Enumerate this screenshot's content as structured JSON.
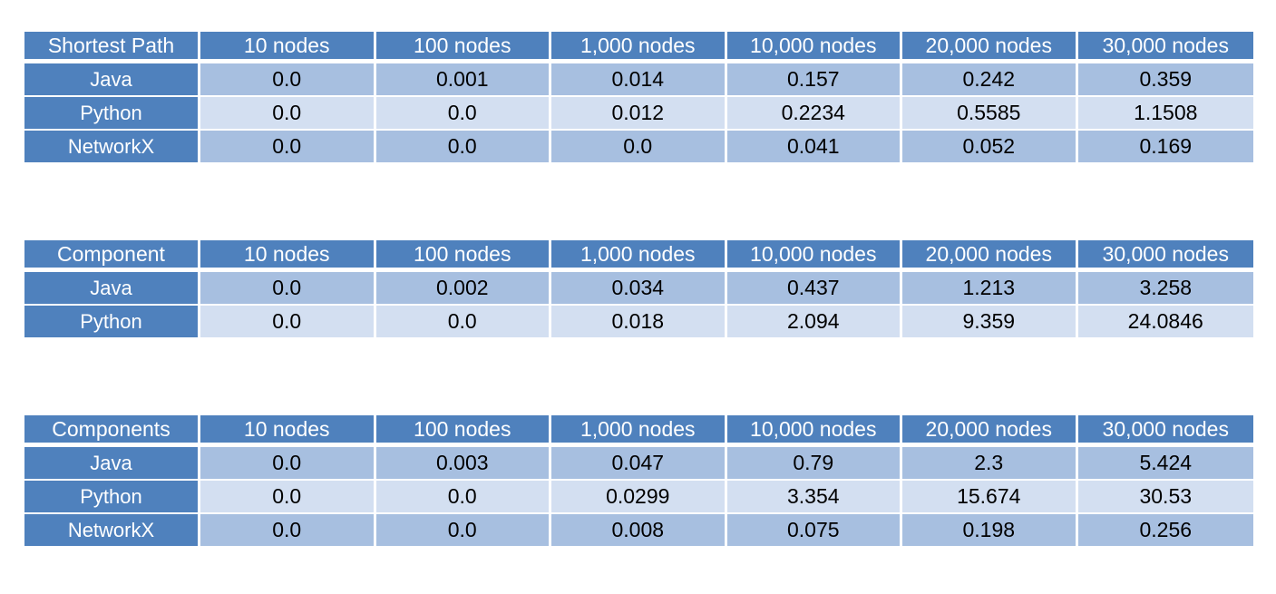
{
  "columns": [
    "10 nodes",
    "100 nodes",
    "1,000 nodes",
    "10,000 nodes",
    "20,000 nodes",
    "30,000 nodes"
  ],
  "tables": [
    {
      "title": "Shortest Path",
      "rows": [
        {
          "label": "Java",
          "values": [
            "0.0",
            "0.001",
            "0.014",
            "0.157",
            "0.242",
            "0.359"
          ]
        },
        {
          "label": "Python",
          "values": [
            "0.0",
            "0.0",
            "0.012",
            "0.2234",
            "0.5585",
            "1.1508"
          ]
        },
        {
          "label": "NetworkX",
          "values": [
            "0.0",
            "0.0",
            "0.0",
            "0.041",
            "0.052",
            "0.169"
          ]
        }
      ]
    },
    {
      "title": "Component",
      "rows": [
        {
          "label": "Java",
          "values": [
            "0.0",
            "0.002",
            "0.034",
            "0.437",
            "1.213",
            "3.258"
          ]
        },
        {
          "label": "Python",
          "values": [
            "0.0",
            "0.0",
            "0.018",
            "2.094",
            "9.359",
            "24.0846"
          ]
        }
      ]
    },
    {
      "title": "Components",
      "rows": [
        {
          "label": "Java",
          "values": [
            "0.0",
            "0.003",
            "0.047",
            "0.79",
            "2.3",
            "5.424"
          ]
        },
        {
          "label": "Python",
          "values": [
            "0.0",
            "0.0",
            "0.0299",
            "3.354",
            "15.674",
            "30.53"
          ]
        },
        {
          "label": "NetworkX",
          "values": [
            "0.0",
            "0.0",
            "0.008",
            "0.075",
            "0.198",
            "0.256"
          ]
        }
      ]
    }
  ],
  "colors": {
    "header_bg": "#4f81bd",
    "row_odd_bg": "#a7bfe0",
    "row_even_bg": "#d3dff1"
  }
}
